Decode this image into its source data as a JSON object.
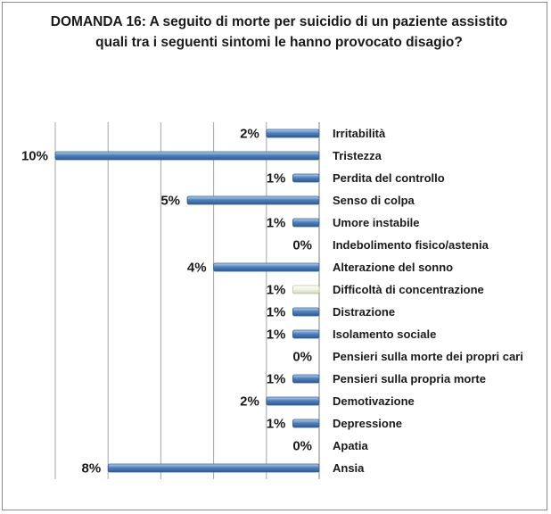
{
  "chart_data": {
    "type": "bar",
    "orientation": "horizontal",
    "title": "DOMANDA 16: A seguito di  morte per suicidio di un paziente assistito quali tra i seguenti sintomi le  hanno provocato disagio?",
    "categories": [
      "Irritabilità",
      "Tristezza",
      "Perdita del controllo",
      "Senso di colpa",
      "Umore instabile",
      "Indebolimento fisico/astenia",
      "Alterazione del sonno",
      "Difficoltà di concentrazione",
      "Distrazione",
      "Isolamento sociale",
      "Pensieri sulla morte dei propri cari",
      "Pensieri sulla propria morte",
      "Demotivazione",
      "Depressione",
      "Apatia",
      "Ansia"
    ],
    "values": [
      2,
      10,
      1,
      5,
      1,
      0,
      4,
      1,
      1,
      1,
      0,
      1,
      2,
      1,
      0,
      8
    ],
    "data_labels": [
      "2%",
      "10%",
      "1%",
      "5%",
      "1%",
      "0%",
      "4%",
      "1%",
      "1%",
      "1%",
      "0%",
      "1%",
      "2%",
      "1%",
      "0%",
      "8%"
    ],
    "highlight_index": 7,
    "xlim": [
      0,
      10
    ],
    "grid": true,
    "legend": "none",
    "xlabel": "",
    "ylabel": ""
  },
  "colors": {
    "bar": "#4f81bd",
    "bar_highlight": "#eef3e2",
    "grid": "#a6a6a6",
    "text": "#1a1a1a"
  }
}
